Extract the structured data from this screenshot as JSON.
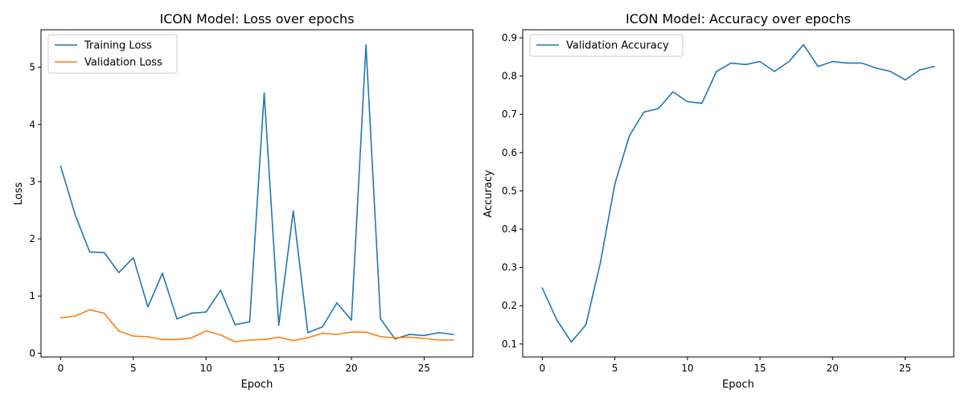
{
  "chart_data": [
    {
      "type": "line",
      "title": "ICON Model: Loss over epochs",
      "xlabel": "Epoch",
      "ylabel": "Loss",
      "xlim": [
        -1.35,
        28.35
      ],
      "ylim": [
        -0.065,
        5.655
      ],
      "xticks": [
        0,
        5,
        10,
        15,
        20,
        25
      ],
      "xtick_labels": [
        "0",
        "5",
        "10",
        "15",
        "20",
        "25"
      ],
      "yticks": [
        0,
        1,
        2,
        3,
        4,
        5
      ],
      "ytick_labels": [
        "0",
        "1",
        "2",
        "3",
        "4",
        "5"
      ],
      "grid": false,
      "legend": "top-left",
      "x": [
        0,
        1,
        2,
        3,
        4,
        5,
        6,
        7,
        8,
        9,
        10,
        11,
        12,
        13,
        14,
        15,
        16,
        17,
        18,
        19,
        20,
        21,
        22,
        23,
        24,
        25,
        26,
        27
      ],
      "series": [
        {
          "name": "Training Loss",
          "color": "#1f77b4",
          "values": [
            3.27,
            2.42,
            1.77,
            1.76,
            1.41,
            1.67,
            0.81,
            1.4,
            0.6,
            0.7,
            0.72,
            1.1,
            0.5,
            0.55,
            4.55,
            0.49,
            2.49,
            0.36,
            0.46,
            0.88,
            0.58,
            5.39,
            0.6,
            0.25,
            0.33,
            0.31,
            0.36,
            0.33
          ]
        },
        {
          "name": "Validation Loss",
          "color": "#ff7f0e",
          "values": [
            0.62,
            0.65,
            0.76,
            0.7,
            0.39,
            0.3,
            0.29,
            0.24,
            0.24,
            0.27,
            0.39,
            0.32,
            0.2,
            0.23,
            0.24,
            0.28,
            0.22,
            0.27,
            0.35,
            0.33,
            0.37,
            0.37,
            0.29,
            0.27,
            0.28,
            0.26,
            0.23,
            0.23
          ]
        }
      ]
    },
    {
      "type": "line",
      "title": "ICON Model: Accuracy over epochs",
      "xlabel": "Epoch",
      "ylabel": "Accuracy",
      "xlim": [
        -1.35,
        28.35
      ],
      "ylim": [
        0.066,
        0.921
      ],
      "xticks": [
        0,
        5,
        10,
        15,
        20,
        25
      ],
      "xtick_labels": [
        "0",
        "5",
        "10",
        "15",
        "20",
        "25"
      ],
      "yticks": [
        0.1,
        0.2,
        0.3,
        0.4,
        0.5,
        0.6,
        0.7,
        0.8,
        0.9
      ],
      "ytick_labels": [
        "0.1",
        "0.2",
        "0.3",
        "0.4",
        "0.5",
        "0.6",
        "0.7",
        "0.8",
        "0.9"
      ],
      "grid": false,
      "legend": "top-left",
      "x": [
        0,
        1,
        2,
        3,
        4,
        5,
        6,
        7,
        8,
        9,
        10,
        11,
        12,
        13,
        14,
        15,
        16,
        17,
        18,
        19,
        20,
        21,
        22,
        23,
        24,
        25,
        26,
        27
      ],
      "series": [
        {
          "name": "Validation Accuracy",
          "color": "#1f77b4",
          "values": [
            0.246,
            0.163,
            0.105,
            0.15,
            0.312,
            0.518,
            0.644,
            0.706,
            0.715,
            0.759,
            0.733,
            0.729,
            0.812,
            0.834,
            0.83,
            0.838,
            0.812,
            0.838,
            0.882,
            0.825,
            0.838,
            0.834,
            0.834,
            0.821,
            0.812,
            0.79,
            0.816,
            0.825
          ]
        }
      ]
    }
  ]
}
